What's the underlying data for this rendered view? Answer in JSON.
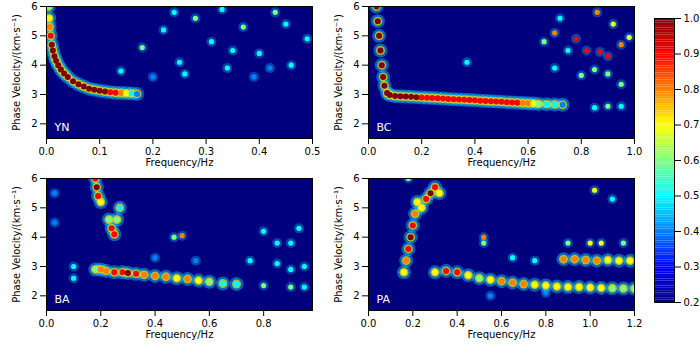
{
  "chart_data": [
    {
      "type": "heatmap",
      "title": "YN",
      "x_label": "Frequency/Hz",
      "y_label": "Phase Velocity/(km·s⁻¹)",
      "xlim": [
        0,
        0.5
      ],
      "xticks": [
        {
          "value": 0,
          "label": "0.0"
        },
        0.1,
        0.2,
        0.3,
        0.4,
        0.5
      ],
      "ylim": [
        1.5,
        6
      ],
      "yticks": [
        2,
        3,
        4,
        5,
        6
      ],
      "background": 0.2,
      "ridges": [
        {
          "x": [
            0.004,
            0.005,
            0.006,
            0.008,
            0.01,
            0.012,
            0.015,
            0.018,
            0.022,
            0.027,
            0.033,
            0.04,
            0.05,
            0.06,
            0.07,
            0.08,
            0.09,
            0.1,
            0.11,
            0.12,
            0.13,
            0.14,
            0.15,
            0.16,
            0.17
          ],
          "y": [
            6.0,
            5.6,
            5.3,
            5.0,
            4.7,
            4.5,
            4.3,
            4.15,
            4.0,
            3.85,
            3.72,
            3.6,
            3.45,
            3.35,
            3.27,
            3.2,
            3.16,
            3.13,
            3.1,
            3.08,
            3.06,
            3.05,
            3.04,
            3.03,
            3.02
          ],
          "values": [
            0.6,
            0.7,
            0.8,
            0.9,
            1.0,
            1.0,
            1.0,
            1.0,
            1.0,
            1.0,
            1.0,
            1.0,
            1.0,
            1.0,
            1.0,
            1.0,
            1.0,
            1.0,
            1.0,
            0.9,
            0.9,
            0.8,
            0.7,
            0.5,
            0.4
          ]
        }
      ],
      "spots": {
        "x": [
          0.14,
          0.18,
          0.22,
          0.25,
          0.28,
          0.31,
          0.34,
          0.37,
          0.4,
          0.43,
          0.46,
          0.49,
          0.2,
          0.26,
          0.33,
          0.39,
          0.45,
          0.24,
          0.35,
          0.42
        ],
        "y": [
          3.8,
          4.6,
          5.2,
          4.1,
          5.6,
          4.8,
          3.9,
          5.3,
          4.4,
          5.8,
          4.0,
          4.9,
          3.6,
          3.7,
          5.9,
          3.6,
          5.4,
          5.8,
          4.5,
          3.9
        ],
        "values": [
          0.5,
          0.6,
          0.5,
          0.5,
          0.6,
          0.5,
          0.5,
          0.6,
          0.5,
          0.6,
          0.5,
          0.5,
          0.4,
          0.5,
          0.5,
          0.4,
          0.5,
          0.5,
          0.5,
          0.4
        ]
      }
    },
    {
      "type": "heatmap",
      "title": "BC",
      "x_label": "Frequency/Hz",
      "y_label": "Phase Velocity/(km·s⁻¹)",
      "xlim": [
        0,
        1
      ],
      "xticks": [
        {
          "value": 0,
          "label": "0.0"
        },
        0.2,
        0.4,
        0.6,
        0.8,
        {
          "value": 1,
          "label": "1.0"
        }
      ],
      "ylim": [
        1.5,
        6
      ],
      "yticks": [
        2,
        3,
        4,
        5,
        6
      ],
      "background": 0.2,
      "ridges": [
        {
          "x": [
            0.03,
            0.035,
            0.04,
            0.045,
            0.05,
            0.055,
            0.06,
            0.07,
            0.08,
            0.1,
            0.12,
            0.14,
            0.16,
            0.18,
            0.2,
            0.22,
            0.24,
            0.26,
            0.28,
            0.3,
            0.32,
            0.34,
            0.36,
            0.38,
            0.4,
            0.42,
            0.44,
            0.46,
            0.48,
            0.5,
            0.52,
            0.54,
            0.56,
            0.58,
            0.6,
            0.62,
            0.64,
            0.67,
            0.7,
            0.73
          ],
          "y": [
            6.0,
            5.5,
            5.0,
            4.5,
            4.0,
            3.6,
            3.3,
            3.05,
            2.98,
            2.95,
            2.94,
            2.93,
            2.92,
            2.91,
            2.9,
            2.89,
            2.88,
            2.87,
            2.86,
            2.85,
            2.84,
            2.83,
            2.82,
            2.81,
            2.8,
            2.79,
            2.78,
            2.77,
            2.76,
            2.75,
            2.74,
            2.73,
            2.72,
            2.71,
            2.7,
            2.69,
            2.68,
            2.67,
            2.66,
            2.65
          ],
          "values": [
            1.0,
            1.0,
            1.0,
            1.0,
            1.0,
            1.0,
            1.0,
            1.0,
            1.0,
            1.0,
            1.0,
            1.0,
            1.0,
            1.0,
            0.9,
            0.9,
            0.9,
            0.9,
            0.9,
            0.9,
            0.9,
            0.9,
            0.9,
            0.9,
            0.9,
            0.9,
            0.9,
            0.9,
            0.9,
            0.9,
            0.9,
            0.9,
            0.9,
            0.8,
            0.8,
            0.7,
            0.6,
            0.5,
            0.5,
            0.4
          ]
        }
      ],
      "spots": {
        "x": [
          0.7,
          0.78,
          0.82,
          0.87,
          0.9,
          0.95,
          0.98,
          0.86,
          0.92,
          0.75,
          0.8,
          0.85,
          0.9,
          0.95,
          0.7,
          0.37,
          0.95,
          0.9,
          0.85,
          0.66,
          0.72
        ],
        "y": [
          5.1,
          4.9,
          4.5,
          4.45,
          4.3,
          4.7,
          4.95,
          5.8,
          5.4,
          4.5,
          3.65,
          3.85,
          3.7,
          3.35,
          3.9,
          4.1,
          2.6,
          2.6,
          2.55,
          4.8,
          5.6
        ],
        "values": [
          0.8,
          0.9,
          0.9,
          0.9,
          0.9,
          0.8,
          0.7,
          0.8,
          0.7,
          0.5,
          0.6,
          0.6,
          0.6,
          0.6,
          0.5,
          0.5,
          0.5,
          0.6,
          0.5,
          0.6,
          0.5
        ]
      }
    },
    {
      "type": "heatmap",
      "title": "BA",
      "x_label": "Frequency/Hz",
      "y_label": "Phase Velocity/(km·s⁻¹)",
      "xlim": [
        0,
        0.98
      ],
      "xticks": [
        {
          "value": 0,
          "label": "0.0"
        },
        0.2,
        0.4,
        0.6,
        0.8
      ],
      "ylim": [
        1.5,
        6
      ],
      "yticks": [
        2,
        3,
        4,
        5,
        6
      ],
      "background": 0.2,
      "ridges": [
        {
          "x": [
            0.18,
            0.2,
            0.22,
            0.25,
            0.28,
            0.3,
            0.33,
            0.36,
            0.4,
            0.44,
            0.48,
            0.52,
            0.56,
            0.6,
            0.65,
            0.7
          ],
          "y": [
            2.9,
            2.9,
            2.85,
            2.8,
            2.8,
            2.78,
            2.75,
            2.72,
            2.68,
            2.65,
            2.6,
            2.57,
            2.52,
            2.48,
            2.42,
            2.4
          ],
          "values": [
            0.6,
            0.8,
            0.8,
            0.9,
            0.9,
            1.0,
            0.9,
            0.8,
            0.8,
            0.8,
            0.7,
            0.8,
            0.7,
            0.6,
            0.5,
            0.5
          ]
        },
        {
          "x": [
            0.18,
            0.185,
            0.19,
            0.2
          ],
          "y": [
            6.0,
            5.7,
            5.4,
            5.2
          ],
          "values": [
            0.9,
            1.0,
            0.9,
            0.7
          ]
        },
        {
          "x": [
            0.25,
            0.24,
            0.23,
            0.26,
            0.27
          ],
          "y": [
            4.1,
            4.3,
            4.6,
            4.6,
            5.0
          ],
          "values": [
            0.9,
            0.9,
            0.6,
            0.6,
            0.5
          ]
        }
      ],
      "spots": {
        "x": [
          0.5,
          0.47,
          0.1,
          0.1,
          0.03,
          0.03,
          0.8,
          0.85,
          0.9,
          0.93,
          0.75,
          0.85,
          0.9,
          0.95,
          0.8,
          0.9,
          0.95,
          0.4,
          0.55
        ],
        "y": [
          4.05,
          4.0,
          3.0,
          2.6,
          5.5,
          4.5,
          4.2,
          3.8,
          3.8,
          4.3,
          3.2,
          3.1,
          2.9,
          3.0,
          2.35,
          2.3,
          2.3,
          3.3,
          3.2
        ],
        "values": [
          0.8,
          0.6,
          0.5,
          0.5,
          0.4,
          0.4,
          0.5,
          0.5,
          0.5,
          0.5,
          0.5,
          0.5,
          0.5,
          0.5,
          0.6,
          0.6,
          0.5,
          0.4,
          0.4
        ]
      }
    },
    {
      "type": "heatmap",
      "title": "PA",
      "x_label": "Frequency/Hz",
      "y_label": "Phase Velocity/(km·s⁻¹)",
      "xlim": [
        0,
        1.2
      ],
      "xticks": [
        {
          "value": 0,
          "label": "0.0"
        },
        0.2,
        0.4,
        0.6,
        0.8,
        {
          "value": 1,
          "label": "1.0"
        },
        1.2
      ],
      "ylim": [
        1.5,
        6
      ],
      "yticks": [
        2,
        3,
        4,
        5,
        6
      ],
      "background": 0.2,
      "ridges": [
        {
          "x": [
            0.16,
            0.17,
            0.18,
            0.19,
            0.2,
            0.21,
            0.22,
            0.24,
            0.26,
            0.28,
            0.3,
            0.32
          ],
          "y": [
            2.8,
            3.2,
            3.6,
            4.0,
            4.4,
            4.8,
            5.2,
            5.0,
            5.3,
            5.5,
            5.7,
            5.5
          ],
          "values": [
            0.7,
            0.8,
            0.9,
            1.0,
            0.9,
            0.8,
            0.7,
            0.7,
            0.9,
            1.0,
            0.9,
            0.7
          ]
        },
        {
          "x": [
            0.3,
            0.35,
            0.4,
            0.45,
            0.5,
            0.55,
            0.6,
            0.65,
            0.7,
            0.75,
            0.8,
            0.85,
            0.9,
            0.95,
            1.0,
            1.05,
            1.1,
            1.15,
            1.2
          ],
          "y": [
            2.8,
            2.85,
            2.8,
            2.7,
            2.6,
            2.55,
            2.5,
            2.45,
            2.4,
            2.38,
            2.35,
            2.32,
            2.3,
            2.3,
            2.28,
            2.27,
            2.26,
            2.25,
            2.25
          ],
          "values": [
            0.7,
            0.9,
            0.9,
            0.7,
            0.6,
            0.7,
            0.8,
            0.8,
            0.8,
            0.7,
            0.7,
            0.7,
            0.7,
            0.7,
            0.7,
            0.7,
            0.6,
            0.6,
            0.6
          ]
        },
        {
          "x": [
            0.88,
            0.93,
            0.98,
            1.03,
            1.08,
            1.13,
            1.18
          ],
          "y": [
            3.25,
            3.25,
            3.22,
            3.2,
            3.22,
            3.2,
            3.2
          ],
          "values": [
            0.8,
            0.8,
            0.8,
            0.8,
            0.7,
            0.7,
            0.7
          ]
        }
      ],
      "spots": {
        "x": [
          0.18,
          0.52,
          0.52,
          0.9,
          1.0,
          1.05,
          1.15,
          1.02,
          1.1,
          0.65,
          0.75,
          0.55,
          0.8
        ],
        "y": [
          6.0,
          4.0,
          3.8,
          3.8,
          3.8,
          3.8,
          3.8,
          5.6,
          5.3,
          3.3,
          3.2,
          2.0,
          2.1
        ],
        "values": [
          0.6,
          0.8,
          0.6,
          0.6,
          0.7,
          0.7,
          0.6,
          0.7,
          0.5,
          0.5,
          0.5,
          0.4,
          0.4
        ]
      }
    }
  ],
  "colorbar": {
    "range": [
      0.2,
      1
    ],
    "ticks": [
      0.2,
      0.3,
      0.4,
      0.5,
      0.6,
      0.7,
      0.8,
      0.9,
      {
        "value": 1,
        "label": "1.0"
      }
    ]
  }
}
